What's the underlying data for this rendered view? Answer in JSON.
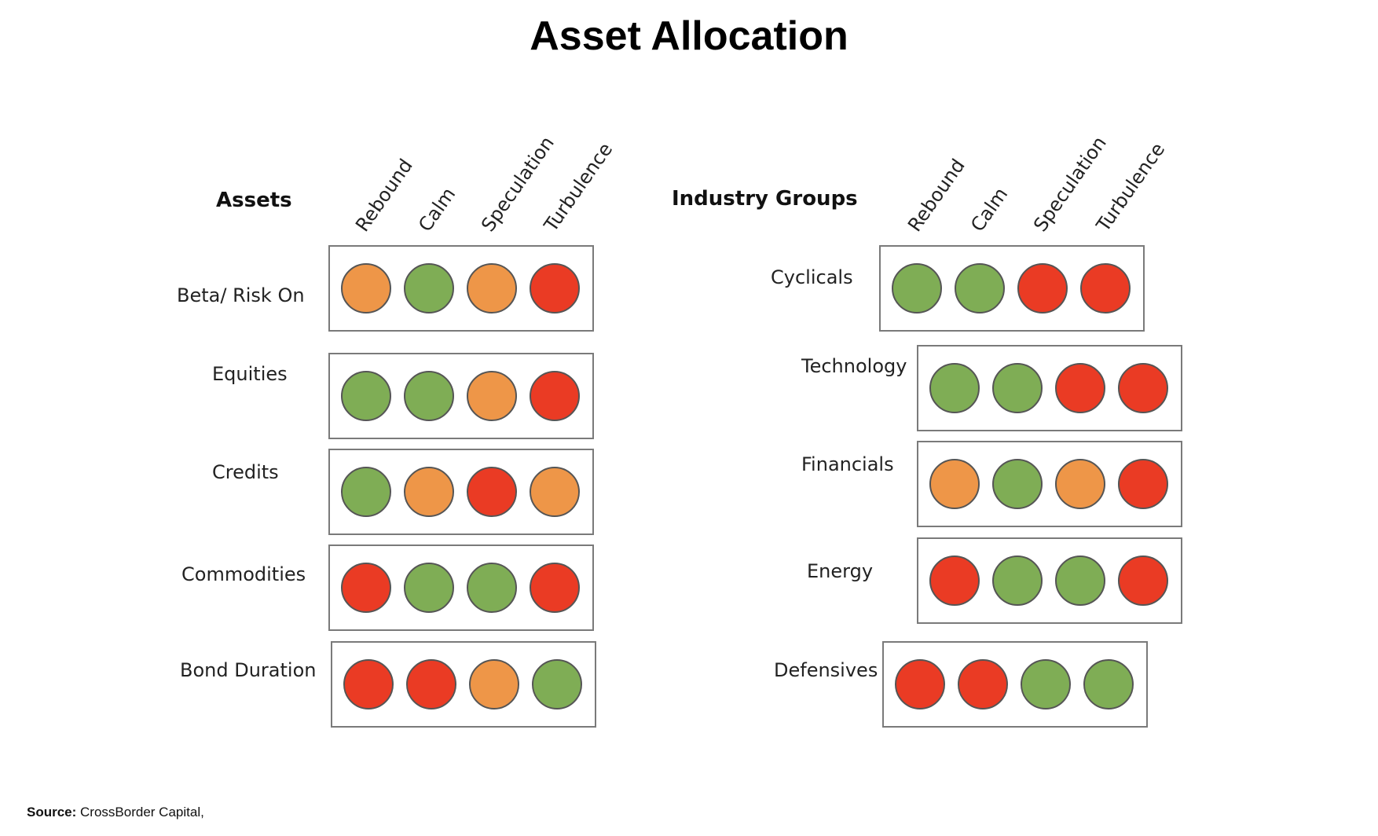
{
  "title": "Asset Allocation",
  "source": {
    "label": "Source:",
    "text": "CrossBorder Capital,"
  },
  "colors": {
    "green": "#7fad55",
    "orange": "#ee9648",
    "red": "#ea3b24"
  },
  "legend_scale": [
    "green",
    "orange",
    "red"
  ],
  "chart_data": [
    {
      "type": "table",
      "title": "Assets",
      "columns": [
        "Rebound",
        "Calm",
        "Speculation",
        "Turbulence"
      ],
      "rows": [
        {
          "label": "Beta/ Risk On",
          "values": [
            "orange",
            "green",
            "orange",
            "red"
          ]
        },
        {
          "label": "Equities",
          "values": [
            "green",
            "green",
            "orange",
            "red"
          ]
        },
        {
          "label": "Credits",
          "values": [
            "green",
            "orange",
            "red",
            "orange"
          ]
        },
        {
          "label": "Commodities",
          "values": [
            "red",
            "green",
            "green",
            "red"
          ]
        },
        {
          "label": "Bond Duration",
          "values": [
            "red",
            "red",
            "orange",
            "green"
          ]
        }
      ]
    },
    {
      "type": "table",
      "title": "Industry Groups",
      "columns": [
        "Rebound",
        "Calm",
        "Speculation",
        "Turbulence"
      ],
      "rows": [
        {
          "label": "Cyclicals",
          "values": [
            "green",
            "green",
            "red",
            "red"
          ]
        },
        {
          "label": "Technology",
          "values": [
            "green",
            "green",
            "red",
            "red"
          ]
        },
        {
          "label": "Financials",
          "values": [
            "orange",
            "green",
            "orange",
            "red"
          ]
        },
        {
          "label": "Energy",
          "values": [
            "red",
            "green",
            "green",
            "red"
          ]
        },
        {
          "label": "Defensives",
          "values": [
            "red",
            "red",
            "green",
            "green"
          ]
        }
      ]
    }
  ]
}
